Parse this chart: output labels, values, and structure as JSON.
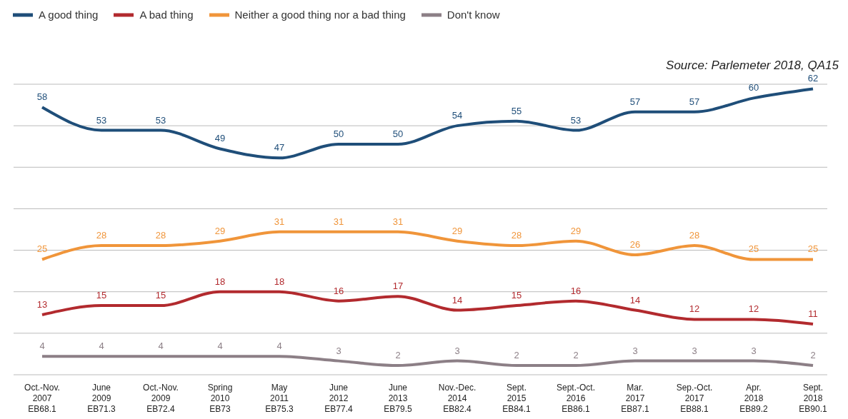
{
  "chart_data": {
    "type": "line",
    "categories": [
      "Oct.-Nov.\n2007\nEB68.1",
      "June\n2009\nEB71.3",
      "Oct.-Nov.\n2009\nEB72.4",
      "Spring\n2010\nEB73",
      "May\n2011\nEB75.3",
      "June\n2012\nEB77.4",
      "June\n2013\nEB79.5",
      "Nov.-Dec.\n2014\nEB82.4",
      "Sept.\n2015\nEB84.1",
      "Sept.-Oct.\n2016\nEB86.1",
      "Mar.\n2017\nEB87.1",
      "Sep.-Oct.\n2017\nEB88.1",
      "Apr.\n2018\nEB89.2",
      "Sept.\n2018\nEB90.1"
    ],
    "series": [
      {
        "name": "A good thing",
        "color": "#1f4e79",
        "values": [
          58,
          53,
          53,
          49,
          47,
          50,
          50,
          54,
          55,
          53,
          57,
          57,
          60,
          62
        ]
      },
      {
        "name": "A bad thing",
        "color": "#b22a2e",
        "values": [
          13,
          15,
          15,
          18,
          18,
          16,
          17,
          14,
          15,
          16,
          14,
          12,
          12,
          11
        ]
      },
      {
        "name": "Neither a good thing nor a bad thing",
        "color": "#f0953a",
        "values": [
          25,
          28,
          28,
          29,
          31,
          31,
          31,
          29,
          28,
          29,
          26,
          28,
          25,
          25
        ]
      },
      {
        "name": "Don't know",
        "color": "#8c7f86",
        "values": [
          4,
          4,
          4,
          4,
          4,
          3,
          2,
          3,
          2,
          2,
          3,
          3,
          3,
          2
        ]
      }
    ],
    "tick_labels": "x",
    "grid": "y",
    "legend": "top left",
    "marker": "none",
    "line_style": "solid",
    "data_labels": true,
    "annotations": [
      "Source: Parlemeter 2018, QA15"
    ]
  }
}
